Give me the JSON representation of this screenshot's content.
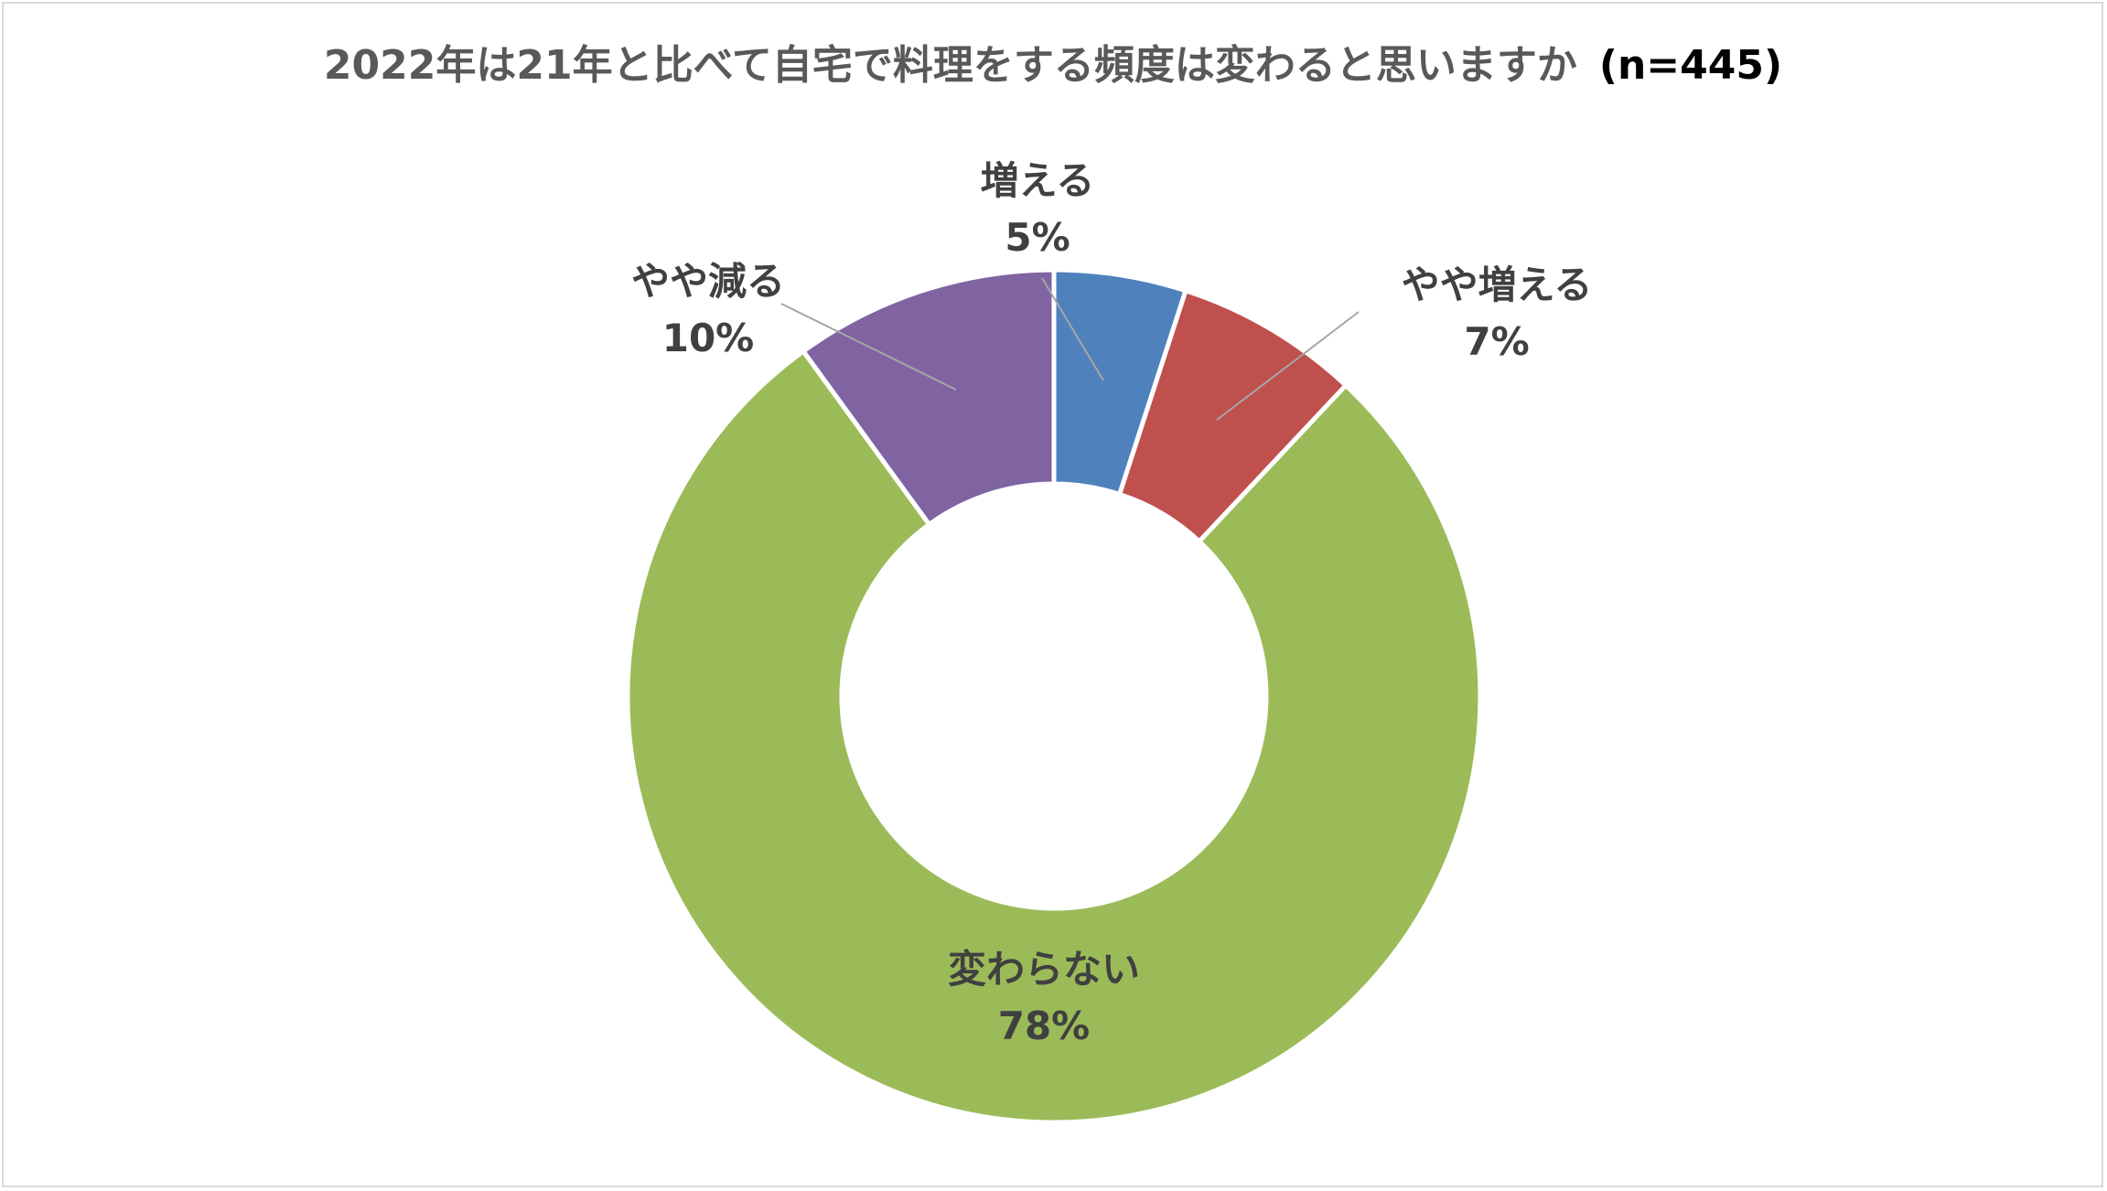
{
  "chart_data": {
    "type": "pie",
    "variant": "doughnut",
    "title": "2022年は21年と比べて自宅で料理をする頻度は変わると思いますか",
    "title_suffix": "(n=445)",
    "start_angle_deg": 0,
    "direction": "clockwise",
    "slices": [
      {
        "label": "増える",
        "value": 5,
        "value_label": "5%",
        "color": "#4f81bd"
      },
      {
        "label": "やや増える",
        "value": 7,
        "value_label": "7%",
        "color": "#c0504d"
      },
      {
        "label": "変わらない",
        "value": 78,
        "value_label": "78%",
        "color": "#9bbb59"
      },
      {
        "label": "やや減る",
        "value": 10,
        "value_label": "10%",
        "color": "#8064a2"
      }
    ],
    "slice_border_color": "#ffffff",
    "leader_line_color": "#a6a6a6",
    "legend": "none"
  }
}
